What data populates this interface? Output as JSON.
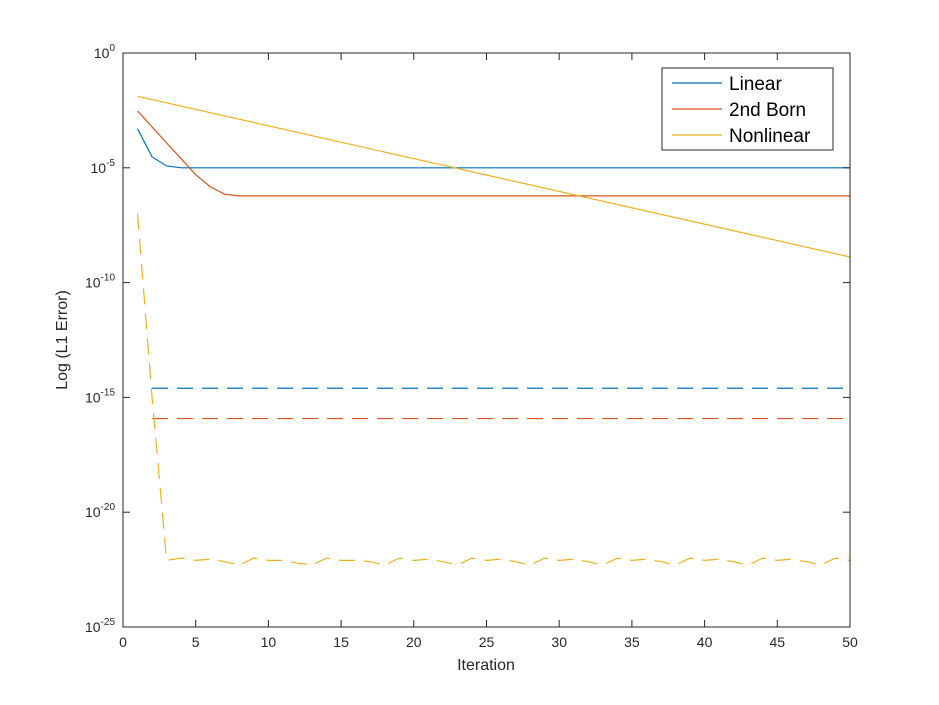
{
  "chart_data": {
    "type": "line",
    "xlabel": "Iteration",
    "ylabel": "Log (L1 Error)",
    "xlim": [
      0,
      50
    ],
    "ylim": [
      1e-25,
      1
    ],
    "yscale": "log",
    "xticks": [
      0,
      5,
      10,
      15,
      20,
      25,
      30,
      35,
      40,
      45,
      50
    ],
    "yticks": [
      {
        "base": "10",
        "exp": "0",
        "value": 1
      },
      {
        "base": "10",
        "exp": "-5",
        "value": 1e-05
      },
      {
        "base": "10",
        "exp": "-10",
        "value": 1e-10
      },
      {
        "base": "10",
        "exp": "-15",
        "value": 1e-15
      },
      {
        "base": "10",
        "exp": "-20",
        "value": 1e-20
      },
      {
        "base": "10",
        "exp": "-25",
        "value": 1e-25
      }
    ],
    "grid": false,
    "legend_position": "top-right",
    "series": [
      {
        "name": "Linear",
        "color": "#0072BD",
        "dash": "solid",
        "points": [
          [
            1,
            0.0005
          ],
          [
            2,
            3e-05
          ],
          [
            3,
            1.2e-05
          ],
          [
            4,
            1e-05
          ],
          [
            50,
            1e-05
          ]
        ]
      },
      {
        "name": "2nd Born",
        "color": "#D95319",
        "dash": "solid",
        "points": [
          [
            1,
            0.003
          ],
          [
            2,
            0.0006
          ],
          [
            3,
            0.00012
          ],
          [
            4,
            2.5e-05
          ],
          [
            5,
            5e-06
          ],
          [
            6,
            1.5e-06
          ],
          [
            7,
            7e-07
          ],
          [
            8,
            6e-07
          ],
          [
            50,
            6e-07
          ]
        ]
      },
      {
        "name": "Nonlinear",
        "color": "#EDB120",
        "dash": "solid",
        "points": [
          [
            1,
            0.013
          ],
          [
            50,
            1.3e-09
          ]
        ]
      },
      {
        "name": "",
        "color": "#0072BD",
        "dash": "dashed",
        "points": [
          [
            2,
            2.5e-15
          ],
          [
            50,
            2.5e-15
          ]
        ]
      },
      {
        "name": "",
        "color": "#D95319",
        "dash": "dashed",
        "points": [
          [
            2,
            1.2e-16
          ],
          [
            50,
            1.2e-16
          ]
        ]
      },
      {
        "name": "",
        "color": "#EDB120",
        "dash": "dashed",
        "points": [
          [
            1,
            1e-07
          ],
          [
            2,
            1e-15
          ],
          [
            3,
            8e-23
          ],
          [
            4,
            1e-22
          ],
          [
            5,
            8e-23
          ],
          [
            6,
            9e-23
          ],
          [
            7,
            7e-23
          ],
          [
            8,
            5e-23
          ],
          [
            9,
            1e-22
          ],
          [
            10,
            8e-23
          ],
          [
            11,
            8e-23
          ],
          [
            12,
            6e-23
          ],
          [
            13,
            5e-23
          ],
          [
            14,
            1e-22
          ],
          [
            15,
            8e-23
          ],
          [
            16,
            8e-23
          ],
          [
            17,
            7e-23
          ],
          [
            18,
            5e-23
          ],
          [
            19,
            1e-22
          ],
          [
            20,
            8e-23
          ],
          [
            21,
            9e-23
          ],
          [
            22,
            7e-23
          ],
          [
            23,
            5e-23
          ],
          [
            24,
            1e-22
          ],
          [
            25,
            8e-23
          ],
          [
            26,
            9e-23
          ],
          [
            27,
            7e-23
          ],
          [
            28,
            5e-23
          ],
          [
            29,
            1e-22
          ],
          [
            30,
            8e-23
          ],
          [
            31,
            9e-23
          ],
          [
            32,
            7e-23
          ],
          [
            33,
            5e-23
          ],
          [
            34,
            1e-22
          ],
          [
            35,
            8e-23
          ],
          [
            36,
            9e-23
          ],
          [
            37,
            7e-23
          ],
          [
            38,
            5e-23
          ],
          [
            39,
            1e-22
          ],
          [
            40,
            8e-23
          ],
          [
            41,
            9e-23
          ],
          [
            42,
            7e-23
          ],
          [
            43,
            5e-23
          ],
          [
            44,
            1e-22
          ],
          [
            45,
            8e-23
          ],
          [
            46,
            9e-23
          ],
          [
            47,
            7e-23
          ],
          [
            48,
            5e-23
          ],
          [
            49,
            1e-22
          ],
          [
            50,
            8e-23
          ]
        ]
      }
    ]
  }
}
